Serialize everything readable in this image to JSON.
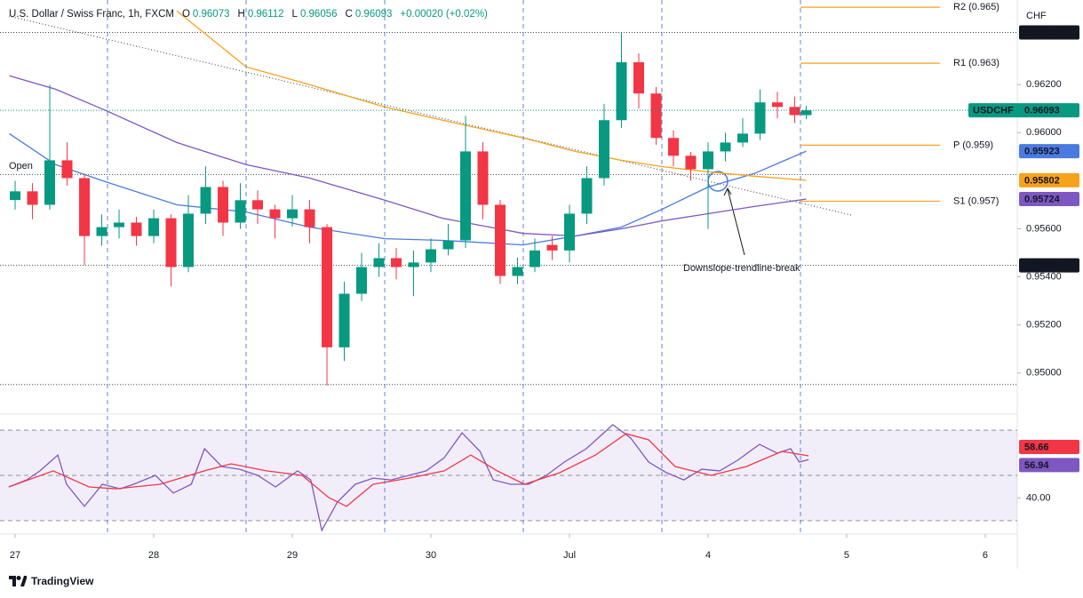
{
  "chart_data": [
    {
      "type": "candlestick",
      "title": "U.S. Dollar / Swiss Franc, 1h, FXCM",
      "ohlc_letters": [
        "O",
        "H",
        "L",
        "C"
      ],
      "change": "+0.00020 (+0.02%)",
      "symbol": "USDCHF",
      "currency": "CHF",
      "x": [
        0,
        3,
        6,
        9,
        12,
        15,
        18,
        21,
        24,
        27,
        30,
        33,
        36,
        39,
        42,
        45,
        48,
        51,
        54,
        57,
        60,
        63,
        66,
        69,
        72,
        75,
        78,
        81,
        84,
        87,
        90,
        93,
        96,
        99,
        102,
        105,
        108,
        111,
        114,
        117,
        120,
        123,
        126,
        129,
        132,
        135,
        137
      ],
      "open": [
        0.9572,
        0.95756,
        0.957,
        0.95885,
        0.95811,
        0.9557,
        0.95607,
        0.95626,
        0.9557,
        0.95644,
        0.95441,
        0.95663,
        0.95774,
        0.95626,
        0.95719,
        0.95681,
        0.95644,
        0.95681,
        0.95607,
        0.95107,
        0.9533,
        0.95441,
        0.95478,
        0.95441,
        0.9546,
        0.95515,
        0.95552,
        0.95922,
        0.957,
        0.95404,
        0.95441,
        0.95533,
        0.9551,
        0.95663,
        0.95811,
        0.96052,
        0.96293,
        0.96163,
        0.95978,
        0.95904,
        0.95848,
        0.95922,
        0.95959,
        0.95996,
        0.96126,
        0.96107,
        0.96073
      ],
      "high": [
        0.958,
        0.9579,
        0.962,
        0.9596,
        0.9583,
        0.9566,
        0.9568,
        0.9565,
        0.9568,
        0.9566,
        0.9574,
        0.9586,
        0.958,
        0.9579,
        0.9576,
        0.957,
        0.9574,
        0.9572,
        0.9562,
        0.9538,
        0.955,
        0.9554,
        0.9552,
        0.9551,
        0.9556,
        0.9562,
        0.9607,
        0.9596,
        0.9572,
        0.9548,
        0.9556,
        0.9557,
        0.957,
        0.9586,
        0.9612,
        0.96415,
        0.9633,
        0.9619,
        0.9601,
        0.9592,
        0.9596,
        0.96,
        0.9606,
        0.9618,
        0.9617,
        0.9615,
        0.96112
      ],
      "low": [
        0.9568,
        0.9564,
        0.9568,
        0.9578,
        0.9545,
        0.9553,
        0.9556,
        0.9553,
        0.9554,
        0.9536,
        0.9542,
        0.9562,
        0.9557,
        0.956,
        0.9562,
        0.9556,
        0.9561,
        0.9554,
        0.94948,
        0.9505,
        0.953,
        0.954,
        0.9539,
        0.9532,
        0.9542,
        0.9549,
        0.9552,
        0.9564,
        0.9537,
        0.9537,
        0.9542,
        0.9547,
        0.9546,
        0.9562,
        0.9578,
        0.9602,
        0.961,
        0.9595,
        0.9586,
        0.958,
        0.956,
        0.9588,
        0.9594,
        0.9597,
        0.9606,
        0.9604,
        0.96056
      ],
      "close": [
        0.95756,
        0.957,
        0.95885,
        0.95811,
        0.9557,
        0.95607,
        0.95626,
        0.9557,
        0.95644,
        0.95441,
        0.95663,
        0.95774,
        0.95626,
        0.95719,
        0.95681,
        0.95644,
        0.95681,
        0.95607,
        0.95107,
        0.9533,
        0.95441,
        0.95478,
        0.95441,
        0.9546,
        0.95515,
        0.95552,
        0.95922,
        0.957,
        0.95404,
        0.95441,
        0.9551,
        0.9551,
        0.95663,
        0.95811,
        0.96052,
        0.96293,
        0.96163,
        0.95978,
        0.95904,
        0.95848,
        0.95922,
        0.95959,
        0.95996,
        0.96126,
        0.96107,
        0.96073,
        0.96093
      ],
      "up_color": "#089981",
      "down_color": "#f23645",
      "moving_averages": [
        {
          "color": "#4a7be0",
          "x": [
            -1,
            7,
            16,
            28,
            40,
            51,
            64,
            74,
            88,
            97,
            105,
            112,
            120,
            128,
            137
          ],
          "values": [
            0.95996,
            0.95867,
            0.95793,
            0.957,
            0.9567,
            0.95607,
            0.95559,
            0.95552,
            0.95533,
            0.9557,
            0.95607,
            0.95681,
            0.95774,
            0.9583,
            0.95923
          ]
        },
        {
          "color": "#f7a21b",
          "x": [
            -1,
            7,
            16,
            28,
            40,
            51,
            64,
            74,
            88,
            97,
            105,
            112,
            120,
            128,
            137
          ],
          "values": [
            null,
            null,
            null,
            0.96507,
            0.96274,
            0.962,
            0.96107,
            0.96052,
            0.95978,
            0.95922,
            0.95885,
            0.95859,
            0.95837,
            0.95819,
            0.95802
          ]
        },
        {
          "color": "#7e57c2",
          "x": [
            -1,
            7,
            16,
            28,
            40,
            51,
            64,
            74,
            88,
            97,
            105,
            112,
            120,
            128,
            137
          ],
          "values": [
            0.96237,
            0.96181,
            0.96089,
            0.95959,
            0.95867,
            0.95811,
            0.95719,
            0.95644,
            0.95581,
            0.9557,
            0.956,
            0.95633,
            0.95663,
            0.95693,
            0.95724
          ]
        }
      ],
      "trendline": {
        "x": [
          -1.08,
          145.1
        ],
        "values": [
          0.96485,
          0.95656
        ]
      },
      "pivots": [
        {
          "label": "R2 (0.965)",
          "value": 0.96522
        },
        {
          "label": "R1 (0.963)",
          "value": 0.96289
        },
        {
          "label": "P (0.959)",
          "value": 0.95948
        },
        {
          "label": "S1 (0.957)",
          "value": 0.95715
        }
      ],
      "pivot_color": "#f7a21b",
      "tagged_levels": [
        0.96417,
        0.95448
      ],
      "open_level": {
        "label": "Open",
        "value": 0.95826
      },
      "dotted_levels": [
        0.94952
      ],
      "annotation": "Downslope-trendline-break",
      "session_breaks": [
        16,
        40,
        64,
        88,
        112,
        136
      ],
      "xlim": [
        -2.62,
        173.54
      ],
      "xticks": [
        {
          "value": 0,
          "label": "27"
        },
        {
          "value": 24,
          "label": "28"
        },
        {
          "value": 48,
          "label": "29"
        },
        {
          "value": 72,
          "label": "30"
        },
        {
          "value": 96,
          "label": "Jul"
        },
        {
          "value": 120,
          "label": "4"
        },
        {
          "value": 144,
          "label": "5"
        },
        {
          "value": 168,
          "label": "6"
        }
      ],
      "ylim": [
        0.94833,
        0.96552
      ],
      "yticks": [
        {
          "value": 0.95,
          "label": "0.95000"
        },
        {
          "value": 0.952,
          "label": "0.95200"
        },
        {
          "value": 0.954,
          "label": "0.95400"
        },
        {
          "value": 0.956,
          "label": "0.95600"
        },
        {
          "value": 0.96,
          "label": "0.96000"
        },
        {
          "value": 0.962,
          "label": "0.96200"
        }
      ]
    },
    {
      "type": "line",
      "series": [
        {
          "color": "#7e57c2",
          "x": [
            -1.1,
            2,
            4.3,
            7.4,
            8.9,
            12,
            15.1,
            18.2,
            20.5,
            24.3,
            27.4,
            30.5,
            32.8,
            35.8,
            38.9,
            42,
            45.1,
            48.9,
            51.2,
            53.1,
            55.8,
            58.9,
            62,
            65.1,
            68.2,
            71.2,
            74.3,
            77.4,
            80.5,
            82.8,
            85.8,
            88.9,
            92,
            95.1,
            98.9,
            103.5,
            106.6,
            109.7,
            112.8,
            115.8,
            118.9,
            122,
            125.1,
            128.9,
            132,
            134.3,
            135.8,
            137.4
          ],
          "values": [
            44.9,
            48,
            52,
            59,
            46.1,
            36.3,
            46.1,
            44.1,
            46.1,
            50,
            42.2,
            46.1,
            61.8,
            53.9,
            52.7,
            50,
            44.9,
            52,
            48,
            25.7,
            38.2,
            46.1,
            48.8,
            48,
            50,
            52,
            57.8,
            68.8,
            60.6,
            48,
            46.1,
            46.1,
            50,
            55.9,
            61.8,
            72.4,
            66.5,
            55.9,
            51.2,
            48,
            52.7,
            52,
            56.7,
            63.7,
            59.8,
            61.8,
            55.9,
            56.94
          ]
        },
        {
          "color": "#f23645",
          "x": [
            -1.1,
            6.6,
            12.8,
            17.4,
            25.1,
            32.8,
            37.4,
            43.5,
            49.7,
            54.3,
            57.4,
            62,
            68.2,
            74.3,
            78.9,
            83.5,
            88.2,
            94.3,
            100.5,
            105.8,
            109.7,
            114.3,
            120.5,
            126.6,
            132.8,
            137.4
          ],
          "values": [
            44.9,
            52,
            44.9,
            44.1,
            46.1,
            52,
            55.1,
            52,
            50,
            40.2,
            36.3,
            46.1,
            48.8,
            52,
            59,
            52,
            46.1,
            51.2,
            59,
            68.4,
            65.7,
            53.9,
            50,
            53.9,
            60.6,
            58.66
          ]
        }
      ],
      "ylim": [
        24.5,
        76.7
      ],
      "yticks": [
        {
          "value": 40,
          "label": "40.00"
        }
      ],
      "levels": [
        70,
        50,
        30
      ]
    }
  ],
  "footer": "TradingView"
}
